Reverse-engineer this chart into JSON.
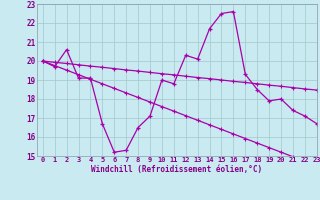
{
  "background_color": "#c8eaf0",
  "line_color": "#aa00aa",
  "grid_color": "#a0c8cc",
  "xlim": [
    -0.5,
    23
  ],
  "ylim": [
    15,
    23
  ],
  "yticks": [
    15,
    16,
    17,
    18,
    19,
    20,
    21,
    22,
    23
  ],
  "xticks": [
    0,
    1,
    2,
    3,
    4,
    5,
    6,
    7,
    8,
    9,
    10,
    11,
    12,
    13,
    14,
    15,
    16,
    17,
    18,
    19,
    20,
    21,
    22,
    23
  ],
  "xlabel": "Windchill (Refroidissement éolien,°C)",
  "line1_x": [
    0,
    1,
    2,
    3,
    4,
    5,
    6,
    7,
    8,
    9,
    10,
    11,
    12,
    13,
    14,
    15,
    16,
    17,
    18,
    19,
    20,
    21,
    22,
    23
  ],
  "line1_y": [
    20.0,
    19.7,
    20.6,
    19.1,
    19.1,
    16.7,
    15.2,
    15.3,
    16.5,
    17.1,
    19.0,
    18.8,
    20.3,
    20.1,
    21.7,
    22.5,
    22.6,
    19.3,
    18.5,
    17.9,
    18.0,
    17.4,
    17.1,
    16.7
  ],
  "line2_x": [
    0,
    1,
    2,
    3,
    4,
    5,
    6,
    7,
    8,
    9,
    10,
    11,
    12,
    13,
    14,
    15,
    16,
    17,
    18,
    19,
    20,
    21,
    22,
    23
  ],
  "line2_y": [
    20.0,
    19.93,
    19.87,
    19.8,
    19.73,
    19.67,
    19.6,
    19.53,
    19.47,
    19.4,
    19.33,
    19.27,
    19.2,
    19.13,
    19.07,
    19.0,
    18.93,
    18.87,
    18.8,
    18.73,
    18.67,
    18.6,
    18.53,
    18.47
  ],
  "line3_x": [
    0,
    1,
    2,
    3,
    4,
    5,
    6,
    7,
    8,
    9,
    10,
    11,
    12,
    13,
    14,
    15,
    16,
    17,
    18,
    19,
    20,
    21,
    22,
    23
  ],
  "line3_y": [
    20.0,
    19.76,
    19.52,
    19.28,
    19.04,
    18.8,
    18.56,
    18.32,
    18.08,
    17.84,
    17.6,
    17.36,
    17.12,
    16.88,
    16.64,
    16.4,
    16.16,
    15.92,
    15.68,
    15.44,
    15.2,
    14.96,
    14.72,
    14.48
  ]
}
